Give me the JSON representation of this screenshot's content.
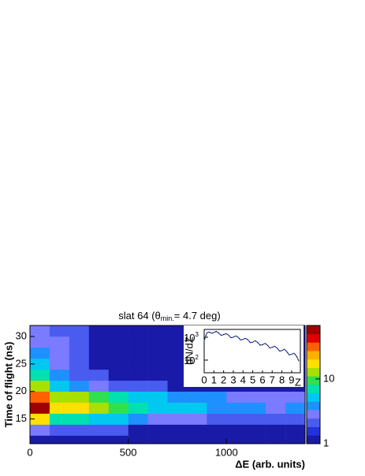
{
  "chart_data": {
    "type": "heatmap",
    "title": "slat 64 (θ",
    "title_subscript": "min.",
    "title_end": "= 4.7 deg)",
    "xlabel": "ΔE (arb. units)",
    "ylabel": "Time of flight (ns)",
    "xlim": [
      0,
      1400
    ],
    "xticks": [
      0,
      500,
      1000
    ],
    "ylim": [
      10.5,
      32
    ],
    "yticks": [
      15,
      20,
      25,
      30
    ],
    "xbins": [
      0,
      100,
      200,
      300,
      400,
      500,
      600,
      700,
      800,
      900,
      1000,
      1100,
      1200,
      1300,
      1400
    ],
    "ybins": [
      10.5,
      12,
      14,
      16,
      18,
      20,
      22,
      24,
      26,
      28,
      30,
      32
    ],
    "counts": [
      [
        1,
        1,
        1,
        1,
        1,
        1,
        1,
        1,
        1,
        1,
        1,
        1,
        1,
        1
      ],
      [
        3,
        2,
        2,
        2,
        2,
        1,
        1,
        1,
        1,
        1,
        1,
        1,
        1,
        1
      ],
      [
        15,
        8,
        7,
        6,
        5,
        4,
        3,
        3,
        3,
        2,
        2,
        2,
        2,
        2
      ],
      [
        50,
        20,
        18,
        14,
        10,
        8,
        6,
        5,
        5,
        4,
        4,
        4,
        3,
        4
      ],
      [
        30,
        14,
        12,
        9,
        7,
        6,
        5,
        4,
        4,
        4,
        3,
        3,
        3,
        3
      ],
      [
        12,
        6,
        4,
        3,
        2,
        2,
        2,
        1,
        1,
        1,
        1,
        1,
        1,
        1
      ],
      [
        8,
        4,
        2,
        2,
        1,
        1,
        1,
        1,
        1,
        1,
        1,
        1,
        1,
        1
      ],
      [
        5,
        3,
        2,
        1,
        1,
        1,
        1,
        1,
        1,
        1,
        1,
        1,
        1,
        1
      ],
      [
        4,
        3,
        2,
        1,
        1,
        1,
        1,
        1,
        1,
        1,
        1,
        1,
        1,
        1
      ],
      [
        3,
        3,
        2,
        1,
        1,
        1,
        1,
        1,
        1,
        1,
        1,
        1,
        1,
        1
      ],
      [
        3,
        2,
        2,
        1,
        1,
        1,
        1,
        1,
        1,
        1,
        1,
        1,
        1,
        1
      ]
    ],
    "zlim": [
      1,
      67
    ],
    "zticks": [
      1,
      10
    ],
    "zscale": "log",
    "palette": [
      "#1a1aa8",
      "#2233dd",
      "#4a5cf0",
      "#7b7bff",
      "#1e90ff",
      "#00c8f0",
      "#00e0b0",
      "#30e050",
      "#a8e000",
      "#ffe000",
      "#ffb000",
      "#ff6000",
      "#e00000",
      "#a00000"
    ],
    "inset": {
      "type": "line",
      "xlabel": "Z",
      "ylabel": "dN/dZ",
      "yscale": "log",
      "xlim": [
        0,
        9.9
      ],
      "xticks": [
        0,
        1,
        2,
        3,
        4,
        5,
        6,
        7,
        8,
        9
      ],
      "ylim": [
        28,
        2200
      ],
      "yticks": [
        {
          "value": 100,
          "label": "10",
          "sup": "2"
        },
        {
          "value": 1000,
          "label": "10",
          "sup": "3"
        }
      ],
      "color": "#000000",
      "x": [
        0,
        0.25,
        0.5,
        0.75,
        1,
        1.25,
        1.5,
        1.75,
        2,
        2.25,
        2.5,
        2.75,
        3,
        3.25,
        3.5,
        3.75,
        4,
        4.25,
        4.5,
        4.75,
        5,
        5.25,
        5.5,
        5.75,
        6,
        6.25,
        6.5,
        6.75,
        7,
        7.25,
        7.5,
        7.75,
        8,
        8.25,
        8.5,
        8.75,
        9,
        9.25,
        9.5,
        9.75
      ],
      "values": [
        700,
        1500,
        1700,
        1500,
        1600,
        1800,
        1500,
        1200,
        1300,
        1450,
        1250,
        950,
        1000,
        1150,
        1000,
        760,
        800,
        900,
        780,
        580,
        610,
        700,
        600,
        450,
        470,
        540,
        460,
        340,
        360,
        410,
        340,
        250,
        260,
        300,
        240,
        170,
        180,
        200,
        150,
        90
      ]
    }
  }
}
